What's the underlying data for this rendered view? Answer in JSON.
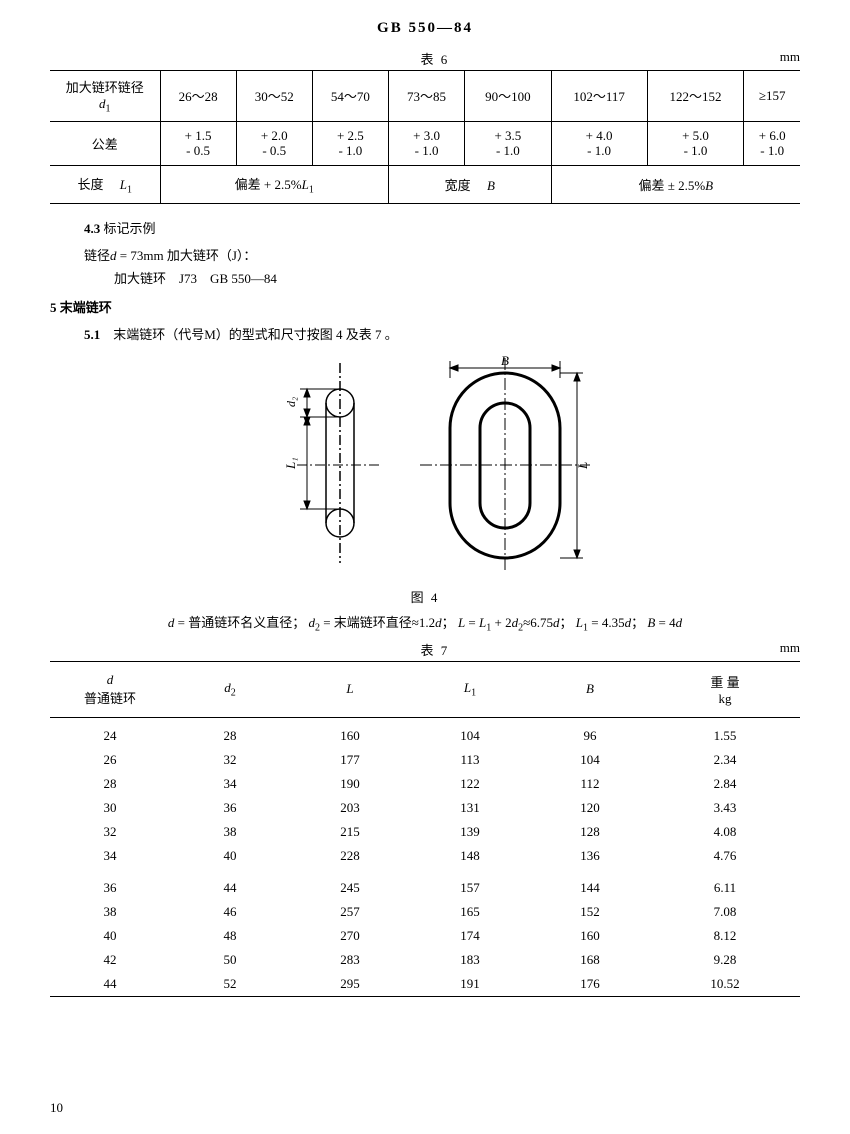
{
  "header": {
    "title": "GB 550—84"
  },
  "table6": {
    "caption": "表 6",
    "unit": "mm",
    "row_header_1": "加大链环链径",
    "row_header_1b": "d",
    "row_header_2": "公差",
    "row3_col1": "长度",
    "row3_col1b": "L",
    "row3_col2": "偏差 + 2.5%",
    "row3_col2b": "L",
    "row3_col3": "宽度",
    "row3_col3b": "B",
    "row3_col4": "偏差 ± 2.5%",
    "row3_col4b": "B",
    "ranges": [
      "26～28",
      "30～52",
      "54～70",
      "73～85",
      "90～100",
      "102～117",
      "122～152",
      "≥157"
    ],
    "tolerances": [
      {
        "p": "+ 1.5",
        "m": "- 0.5"
      },
      {
        "p": "+ 2.0",
        "m": "- 0.5"
      },
      {
        "p": "+ 2.5",
        "m": "- 1.0"
      },
      {
        "p": "+ 3.0",
        "m": "- 1.0"
      },
      {
        "p": "+ 3.5",
        "m": "- 1.0"
      },
      {
        "p": "+ 4.0",
        "m": "- 1.0"
      },
      {
        "p": "+ 5.0",
        "m": "- 1.0"
      },
      {
        "p": "+ 6.0",
        "m": "- 1.0"
      }
    ]
  },
  "section43": {
    "num": "4.3",
    "title": "标记示例",
    "line1a": "链径",
    "line1b": "d",
    "line1c": " = 73mm 加大链环（J）：",
    "line2": "加大链环　J73　GB 550—84"
  },
  "section5": {
    "num": "5",
    "title": "末端链环"
  },
  "section51": {
    "num": "5.1",
    "text": "　末端链环（代号M）的型式和尺寸按图 4 及表 7 。"
  },
  "figure": {
    "caption": "图 4",
    "label_B": "B",
    "label_d2": "d₂",
    "label_L1": "L₁",
    "label_L": "L"
  },
  "formula": {
    "text_pre": "d",
    "t1": " = 普通链环名义直径；  ",
    "t2": "d",
    "t3": " = 末端链环直径≈1.2",
    "t4": "d",
    "t5": "；  ",
    "t6": "L",
    "t7": " = ",
    "t8": "L",
    "t9": " + 2",
    "t10": "d",
    "t11": "≈6.75",
    "t12": "d",
    "t13": "；  ",
    "t14": "L",
    "t15": " = 4.35",
    "t16": "d",
    "t17": "；  ",
    "t18": "B",
    "t19": " = 4",
    "t20": "d"
  },
  "table7": {
    "caption": "表 7",
    "unit": "mm",
    "columns": {
      "c1a": "d",
      "c1b": "普通链环",
      "c2": "d",
      "c3": "L",
      "c4": "L",
      "c5": "B",
      "c6a": "重 量",
      "c6b": "kg"
    },
    "rows": [
      [
        24,
        28,
        160,
        104,
        96,
        "1.55"
      ],
      [
        26,
        32,
        177,
        113,
        104,
        "2.34"
      ],
      [
        28,
        34,
        190,
        122,
        112,
        "2.84"
      ],
      [
        30,
        36,
        203,
        131,
        120,
        "3.43"
      ],
      [
        32,
        38,
        215,
        139,
        128,
        "4.08"
      ],
      [
        34,
        40,
        228,
        148,
        136,
        "4.76"
      ],
      [
        36,
        44,
        245,
        157,
        144,
        "6.11"
      ],
      [
        38,
        46,
        257,
        165,
        152,
        "7.08"
      ],
      [
        40,
        48,
        270,
        174,
        160,
        "8.12"
      ],
      [
        42,
        50,
        283,
        183,
        168,
        "9.28"
      ],
      [
        44,
        52,
        295,
        191,
        176,
        "10.52"
      ]
    ]
  },
  "page_number": "10"
}
